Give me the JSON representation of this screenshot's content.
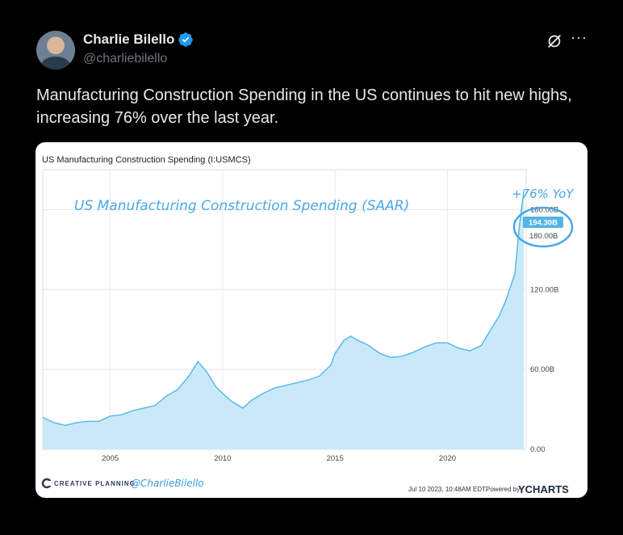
{
  "tweet": {
    "author_name": "Charlie Bilello",
    "handle": "@charliebilello",
    "text": "Manufacturing Construction Spending in the US continues to hit new highs, increasing 76% over the last year.",
    "more_label": "···"
  },
  "chart": {
    "title": "US Manufacturing Construction Spending (I:USMCS)",
    "annotation": "US Manufacturing Construction Spending (SAAR)",
    "yoy_label": "+76% YoY",
    "current_value_label": "194.30B",
    "footer_brand": "CREATIVE PLANNING",
    "footer_handle": "@CharlieBilello",
    "footer_date": "Jul 10 2023, 10:48AM EDT.",
    "footer_powered": "Powered by",
    "footer_ycharts": "YCHARTS",
    "colors": {
      "line": "#5bb8ea",
      "fill": "#c9e9f8",
      "annotation": "#4aa8e6"
    }
  },
  "chart_data": {
    "type": "area",
    "title": "US Manufacturing Construction Spending (I:USMCS)",
    "xlabel": "",
    "ylabel": "",
    "x_ticks": [
      "2005",
      "2010",
      "2015",
      "2020"
    ],
    "y_ticks": [
      "0.00",
      "60.00B",
      "120.00B",
      "180.00B"
    ],
    "ylim": [
      0,
      210
    ],
    "xlim": [
      2002.0,
      2023.5
    ],
    "grid": true,
    "series": [
      {
        "x": [
          2002.0,
          2002.5,
          2003.0,
          2003.5,
          2004.0,
          2004.5,
          2005.0,
          2005.5,
          2006.0,
          2006.5,
          2007.0,
          2007.5,
          2008.0,
          2008.5,
          2008.9,
          2009.3,
          2009.7,
          2010.0,
          2010.4,
          2010.9,
          2011.3,
          2011.8,
          2012.3,
          2012.8,
          2013.3,
          2013.8,
          2014.3,
          2014.8,
          2015.0,
          2015.4,
          2015.7,
          2016.0,
          2016.5,
          2017.0,
          2017.5,
          2018.0,
          2018.5,
          2019.0,
          2019.5,
          2020.0,
          2020.5,
          2021.0,
          2021.5,
          2022.0,
          2022.3,
          2022.6,
          2022.8,
          2023.0,
          2023.2,
          2023.4
        ],
        "values": [
          24,
          20,
          18,
          20,
          21,
          21,
          25,
          26,
          29,
          31,
          33,
          40,
          45,
          55,
          66,
          58,
          47,
          42,
          36,
          31,
          37,
          42,
          46,
          48,
          50,
          52,
          55,
          63,
          72,
          82,
          85,
          82,
          78,
          72,
          69,
          70,
          73,
          77,
          80,
          80,
          76,
          74,
          78,
          92,
          100,
          112,
          122,
          132,
          168,
          194.3
        ]
      }
    ],
    "current_value": 194.3,
    "reference_value_label": "180.00B"
  }
}
